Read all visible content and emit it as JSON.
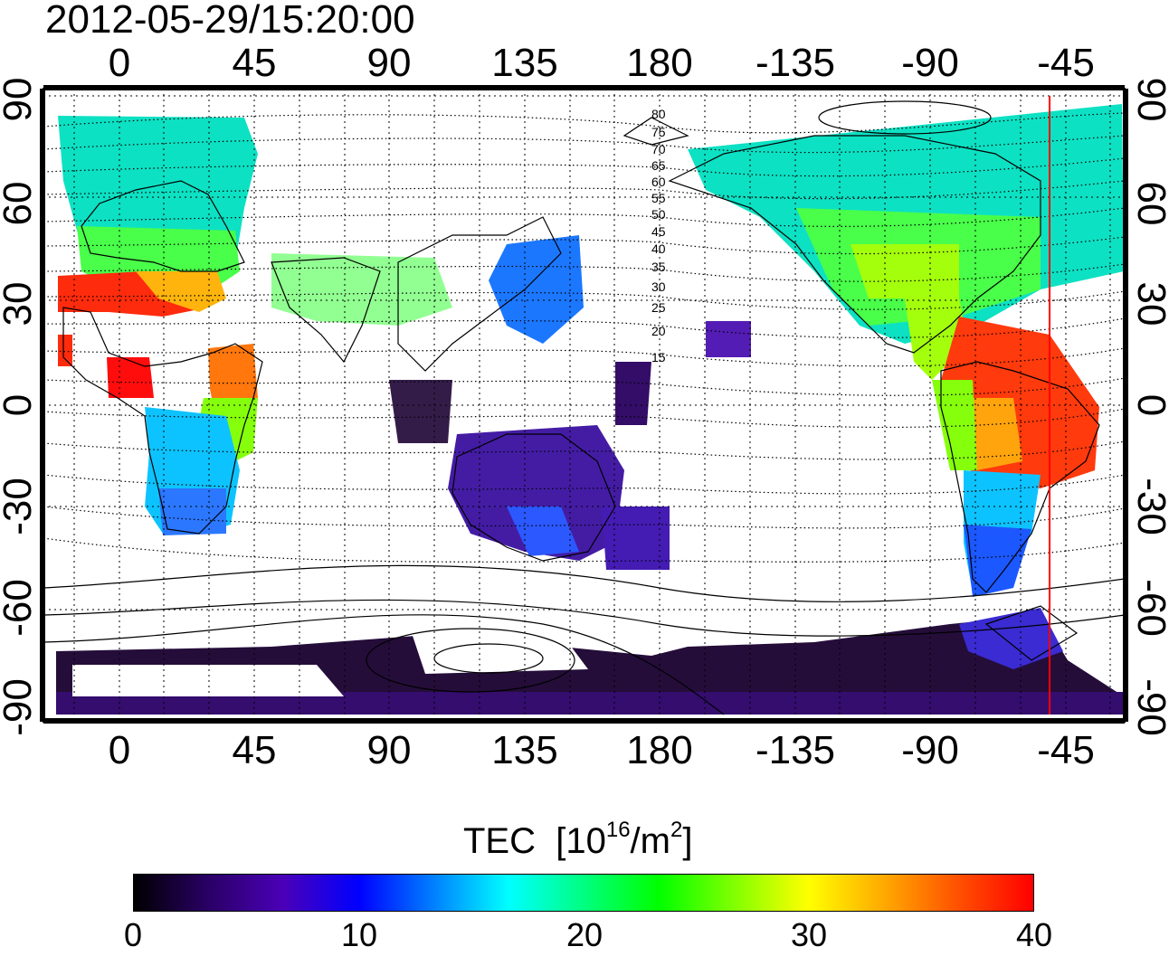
{
  "title": "2012-05-29/15:20:00",
  "top_ticks": [
    "0",
    "45",
    "90",
    "135",
    "180",
    "-135",
    "-90",
    "-45"
  ],
  "bottom_ticks": [
    "0",
    "45",
    "90",
    "135",
    "180",
    "-135",
    "-90",
    "-45"
  ],
  "left_ticks": [
    "90",
    "60",
    "30",
    "0",
    "-30",
    "-60",
    "-90"
  ],
  "right_ticks": [
    "90",
    "60",
    "30",
    "0",
    "-30",
    "-60",
    "-90"
  ],
  "contour_labels": [
    "80",
    "75",
    "70",
    "65",
    "60",
    "55",
    "50",
    "45",
    "40",
    "35",
    "30",
    "25",
    "20",
    "15"
  ],
  "colorbar": {
    "title": "TEC",
    "unit_base": "[10",
    "unit_exp": "16",
    "unit_mid": "/m",
    "unit_exp2": "2",
    "unit_end": "]",
    "ticks": [
      "0",
      "10",
      "20",
      "30",
      "40"
    ],
    "range": [
      0,
      40
    ],
    "colors": [
      "#000000",
      "#2a0066",
      "#4a00b8",
      "#0000ff",
      "#0080ff",
      "#00ffff",
      "#00ff80",
      "#00ff00",
      "#80ff00",
      "#ffff00",
      "#ffaa00",
      "#ff5000",
      "#ff0000"
    ]
  },
  "map": {
    "lon_range": [
      -25,
      335
    ],
    "lat_range": [
      -90,
      90
    ],
    "marker_longitude": -48,
    "marker_color": "#ff0000"
  }
}
